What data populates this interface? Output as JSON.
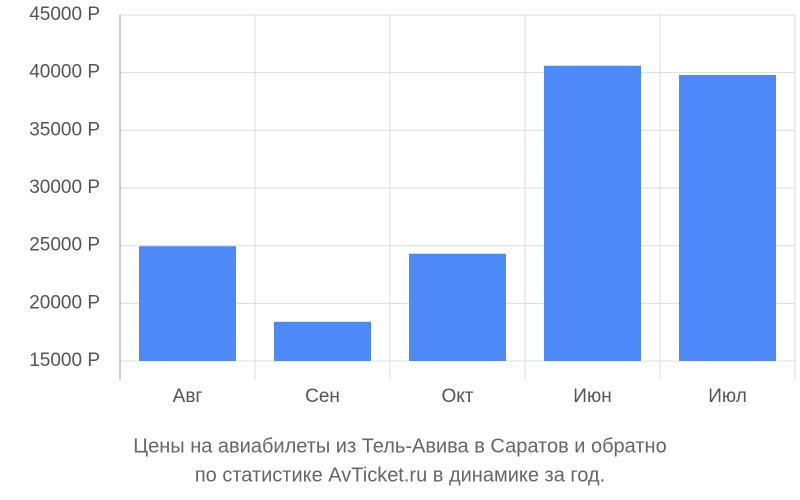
{
  "chart_data": {
    "type": "bar",
    "title": [
      "Цены на авиабилеты из Тель-Авива в Саратов и обратно",
      "по статистике AvTicket.ru в динамике за год."
    ],
    "categories": [
      "Авг",
      "Сен",
      "Окт",
      "Июн",
      "Июл"
    ],
    "values": [
      24950,
      18400,
      24300,
      40600,
      39800
    ],
    "color": "#4d89f9",
    "ylim": [
      15000,
      45000
    ],
    "yticks": [
      {
        "value": 15000,
        "label": "15000 Р"
      },
      {
        "value": 20000,
        "label": "20000 Р"
      },
      {
        "value": 25000,
        "label": "25000 Р"
      },
      {
        "value": 30000,
        "label": "30000 Р"
      },
      {
        "value": 35000,
        "label": "35000 Р"
      },
      {
        "value": 40000,
        "label": "40000 Р"
      },
      {
        "value": 45000,
        "label": "45000 Р"
      }
    ],
    "grid": true
  }
}
